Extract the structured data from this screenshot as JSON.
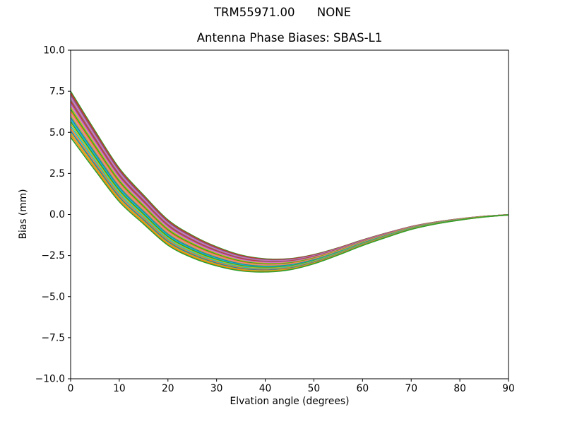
{
  "window": {
    "background": "#ffffff"
  },
  "suptitle": "TRM55971.00      NONE",
  "chart_data": {
    "type": "line",
    "title": "Antenna Phase Biases: SBAS-L1",
    "xlabel": "Elvation angle (degrees)",
    "ylabel": "Bias (mm)",
    "xlim": [
      0,
      90
    ],
    "ylim": [
      -10,
      10
    ],
    "xtick_values": [
      0,
      10,
      20,
      30,
      40,
      50,
      60,
      70,
      80,
      90
    ],
    "xtick_labels": [
      "0",
      "10",
      "20",
      "30",
      "40",
      "50",
      "60",
      "70",
      "80",
      "90"
    ],
    "ytick_values": [
      -10,
      -7.5,
      -5,
      -2.5,
      0,
      2.5,
      5,
      7.5,
      10
    ],
    "ytick_labels": [
      "−10.0",
      "−7.5",
      "−5.0",
      "−2.5",
      "0.0",
      "2.5",
      "5.0",
      "7.5",
      "10.0"
    ],
    "grid": false,
    "legend": null,
    "description": "Bundle of per-satellite phase-bias curves; each series = center_bias + offset * halfwidth at every x",
    "x": [
      0,
      5,
      10,
      15,
      20,
      25,
      30,
      35,
      40,
      45,
      50,
      55,
      60,
      65,
      70,
      75,
      80,
      85,
      90
    ],
    "center_bias": [
      6.1,
      3.9,
      1.8,
      0.3,
      -1.1,
      -1.95,
      -2.55,
      -2.95,
      -3.1,
      -3.03,
      -2.72,
      -2.25,
      -1.72,
      -1.25,
      -0.82,
      -0.52,
      -0.3,
      -0.13,
      -0.02
    ],
    "halfwidth": [
      1.4,
      1.2,
      1.02,
      0.88,
      0.77,
      0.68,
      0.58,
      0.48,
      0.4,
      0.34,
      0.28,
      0.22,
      0.17,
      0.13,
      0.09,
      0.06,
      0.04,
      0.02,
      0.01
    ],
    "line_width": 1.6,
    "axis_color": "#000000",
    "series": [
      {
        "color": "#2ca02c",
        "offset": 1.0
      },
      {
        "color": "#d62728",
        "offset": 0.93
      },
      {
        "color": "#8c564b",
        "offset": 0.86
      },
      {
        "color": "#9467bd",
        "offset": 0.79
      },
      {
        "color": "#e377c2",
        "offset": 0.72
      },
      {
        "color": "#7f7f7f",
        "offset": 0.64
      },
      {
        "color": "#d62728",
        "offset": 0.56
      },
      {
        "color": "#9467bd",
        "offset": 0.48
      },
      {
        "color": "#e377c2",
        "offset": 0.4
      },
      {
        "color": "#bcbd22",
        "offset": 0.31
      },
      {
        "color": "#2ca02c",
        "offset": 0.22
      },
      {
        "color": "#ff7f0e",
        "offset": 0.13
      },
      {
        "color": "#e377c2",
        "offset": 0.04
      },
      {
        "color": "#bcbd22",
        "offset": -0.05
      },
      {
        "color": "#1f77b4",
        "offset": -0.14
      },
      {
        "color": "#17becf",
        "offset": -0.23
      },
      {
        "color": "#2ca02c",
        "offset": -0.32
      },
      {
        "color": "#bcbd22",
        "offset": -0.42
      },
      {
        "color": "#17becf",
        "offset": -0.52
      },
      {
        "color": "#ff7f0e",
        "offset": -0.62
      },
      {
        "color": "#1f77b4",
        "offset": -0.72
      },
      {
        "color": "#bcbd22",
        "offset": -0.81
      },
      {
        "color": "#ff7f0e",
        "offset": -0.9
      },
      {
        "color": "#2ca02c",
        "offset": -1.0
      }
    ]
  }
}
